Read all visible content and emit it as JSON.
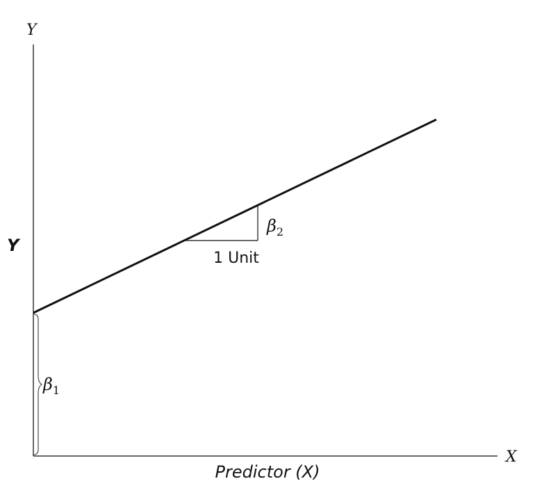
{
  "diagram": {
    "y_axis_top_label": "Y",
    "y_axis_side_label": "Y",
    "x_axis_end_label": "X",
    "x_axis_title": "Predictor (X)",
    "slope_run_label": "1 Unit",
    "slope_symbol": "β",
    "slope_subscript": "2",
    "intercept_symbol": "β",
    "intercept_subscript": "1",
    "colors": {
      "line": "#111111",
      "axis": "#333333",
      "background": "#ffffff"
    }
  }
}
